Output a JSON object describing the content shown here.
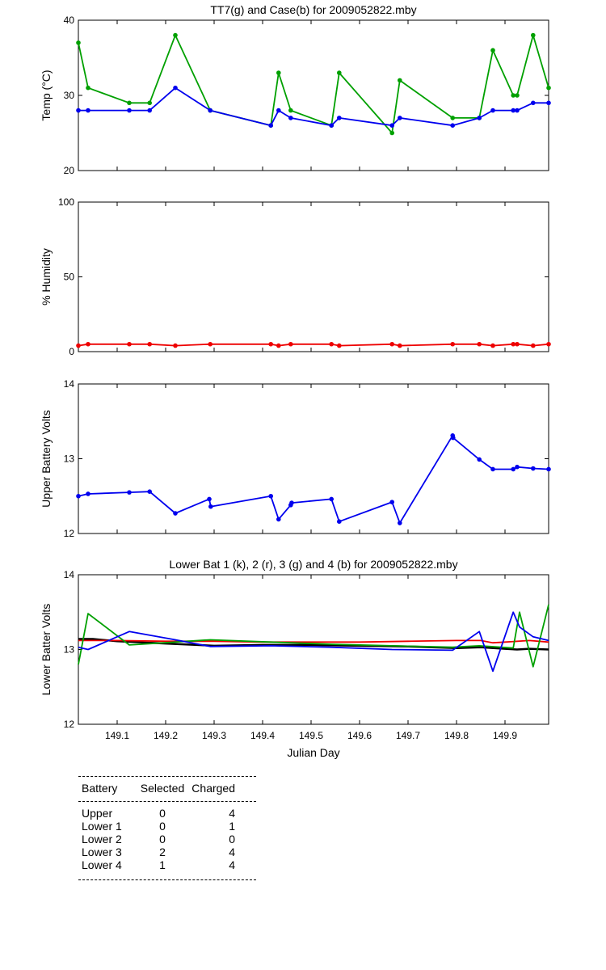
{
  "chart_data": [
    {
      "type": "line",
      "title": "TT7(g) and Case(b) for 2009052822.mby",
      "xlabel": "",
      "ylabel": "Temp  (°C)",
      "xlim": [
        149.02,
        149.99
      ],
      "ylim": [
        20,
        40
      ],
      "yticks": [
        20,
        30,
        40
      ],
      "series": [
        {
          "color": "#00a000",
          "x": [
            149.02,
            149.04,
            149.125,
            149.167,
            149.22,
            149.292,
            149.417,
            149.433,
            149.458,
            149.542,
            149.558,
            149.667,
            149.683,
            149.792,
            149.847,
            149.875,
            149.917,
            149.925,
            149.958,
            149.99
          ],
          "y": [
            37,
            31,
            29,
            29,
            38,
            28,
            26,
            33,
            28,
            26,
            33,
            25,
            32,
            27,
            27,
            36,
            30,
            30,
            38,
            31
          ]
        },
        {
          "color": "#0000ee",
          "x": [
            149.02,
            149.04,
            149.125,
            149.167,
            149.22,
            149.292,
            149.417,
            149.433,
            149.458,
            149.542,
            149.558,
            149.667,
            149.683,
            149.792,
            149.847,
            149.875,
            149.917,
            149.925,
            149.958,
            149.99
          ],
          "y": [
            28,
            28,
            28,
            28,
            31,
            28,
            26,
            28,
            27,
            26,
            27,
            26,
            27,
            26,
            27,
            28,
            28,
            28,
            29,
            29
          ]
        }
      ]
    },
    {
      "type": "line",
      "title": "",
      "xlabel": "",
      "ylabel": "% Humidity",
      "xlim": [
        149.02,
        149.99
      ],
      "ylim": [
        0,
        100
      ],
      "yticks": [
        0,
        50,
        100
      ],
      "series": [
        {
          "color": "#ee0000",
          "x": [
            149.02,
            149.04,
            149.125,
            149.167,
            149.22,
            149.292,
            149.417,
            149.433,
            149.458,
            149.542,
            149.558,
            149.667,
            149.683,
            149.792,
            149.847,
            149.875,
            149.917,
            149.925,
            149.958,
            149.99
          ],
          "y": [
            4,
            5,
            5,
            5,
            4,
            5,
            5,
            4,
            5,
            5,
            4,
            5,
            4,
            5,
            5,
            4,
            5,
            5,
            4,
            5
          ]
        }
      ]
    },
    {
      "type": "line",
      "title": "",
      "xlabel": "",
      "ylabel": "Upper Battery Volts",
      "xlim": [
        149.02,
        149.99
      ],
      "ylim": [
        12,
        14
      ],
      "yticks": [
        12,
        13,
        14
      ],
      "series": [
        {
          "color": "#0000ee",
          "x": [
            149.02,
            149.04,
            149.125,
            149.167,
            149.22,
            149.29,
            149.293,
            149.417,
            149.433,
            149.458,
            149.46,
            149.542,
            149.558,
            149.667,
            149.683,
            149.792,
            149.793,
            149.847,
            149.875,
            149.917,
            149.925,
            149.958,
            149.99
          ],
          "y": [
            12.5,
            12.53,
            12.55,
            12.56,
            12.27,
            12.46,
            12.36,
            12.5,
            12.19,
            12.38,
            12.41,
            12.46,
            12.16,
            12.42,
            12.14,
            13.31,
            13.28,
            12.99,
            12.86,
            12.86,
            12.89,
            12.87,
            12.86
          ]
        }
      ]
    },
    {
      "type": "line",
      "title": "Lower Bat 1 (k), 2 (r), 3 (g) and 4 (b) for 2009052822.mby",
      "xlabel": "Julian Day",
      "ylabel": "Lower Batter Volts",
      "xlim": [
        149.02,
        149.99
      ],
      "ylim": [
        12,
        14
      ],
      "yticks": [
        12,
        13,
        14
      ],
      "xticks": [
        149.1,
        149.2,
        149.3,
        149.4,
        149.5,
        149.6,
        149.7,
        149.8,
        149.9
      ],
      "xtick_labels": [
        "149.1",
        "149.2",
        "149.3",
        "149.4",
        "149.5",
        "149.6",
        "149.7",
        "149.8",
        "149.9"
      ],
      "series": [
        {
          "color": "#000000",
          "x": [
            149.02,
            149.05,
            149.1,
            149.2,
            149.3,
            149.4,
            149.5,
            149.6,
            149.7,
            149.8,
            149.85,
            149.9,
            149.925,
            149.95,
            149.99
          ],
          "y": [
            13.14,
            13.14,
            13.11,
            13.08,
            13.05,
            13.06,
            13.06,
            13.05,
            13.04,
            13.02,
            13.03,
            13.01,
            13.0,
            13.01,
            13.0
          ]
        },
        {
          "color": "#ee0000",
          "x": [
            149.02,
            149.05,
            149.1,
            149.2,
            149.3,
            149.4,
            149.5,
            149.6,
            149.7,
            149.8,
            149.85,
            149.875,
            149.9,
            149.95,
            149.99
          ],
          "y": [
            13.12,
            13.12,
            13.12,
            13.11,
            13.11,
            13.1,
            13.1,
            13.1,
            13.11,
            13.12,
            13.12,
            13.09,
            13.1,
            13.12,
            13.1
          ]
        },
        {
          "color": "#00a000",
          "x": [
            149.02,
            149.04,
            149.125,
            149.22,
            149.292,
            149.417,
            149.542,
            149.667,
            149.792,
            149.847,
            149.917,
            149.93,
            149.958,
            149.99
          ],
          "y": [
            12.8,
            13.48,
            13.06,
            13.1,
            13.13,
            13.1,
            13.07,
            13.05,
            13.03,
            13.05,
            13.02,
            13.5,
            12.77,
            13.6
          ]
        },
        {
          "color": "#0000ee",
          "x": [
            149.02,
            149.04,
            149.125,
            149.22,
            149.292,
            149.417,
            149.542,
            149.667,
            149.792,
            149.847,
            149.875,
            149.917,
            149.93,
            149.958,
            149.99
          ],
          "y": [
            13.03,
            13.0,
            13.24,
            13.13,
            13.04,
            13.05,
            13.03,
            13.0,
            12.99,
            13.24,
            12.71,
            13.5,
            13.3,
            13.17,
            13.12
          ]
        }
      ]
    }
  ],
  "table": {
    "headers": [
      "Battery",
      "Selected",
      "Charged"
    ],
    "rows": [
      [
        "Upper",
        "0",
        "4"
      ],
      [
        "Lower 1",
        "0",
        "1"
      ],
      [
        "Lower 2",
        "0",
        "0"
      ],
      [
        "Lower 3",
        "2",
        "4"
      ],
      [
        "Lower 4",
        "1",
        "4"
      ]
    ]
  }
}
